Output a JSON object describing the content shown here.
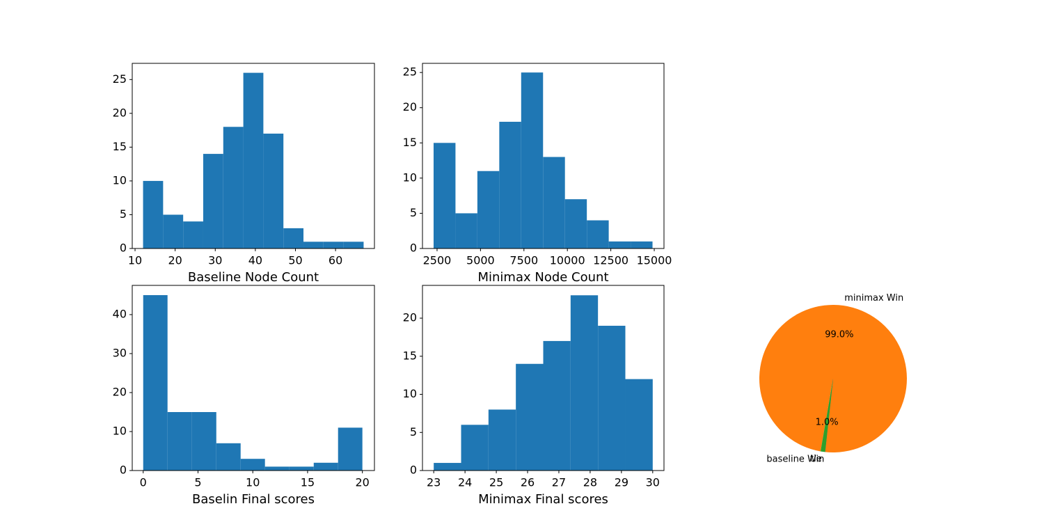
{
  "chart_data": [
    {
      "type": "histogram",
      "xlabel": "Baseline Node Count",
      "color": "#1f77b4",
      "bins": [
        12,
        17,
        22,
        27,
        32,
        37,
        42,
        47,
        52,
        57,
        62,
        67
      ],
      "values": [
        10,
        5,
        4,
        14,
        18,
        26,
        17,
        3,
        1,
        1,
        1
      ],
      "xlim": [
        9.3,
        69.7
      ],
      "ylim": [
        0,
        27.4
      ],
      "xticks": [
        10,
        20,
        30,
        40,
        50,
        60
      ],
      "yticks": [
        0,
        5,
        10,
        15,
        20,
        25
      ]
    },
    {
      "type": "histogram",
      "xlabel": "Minimax Node Count",
      "color": "#1f77b4",
      "bins": [
        2300,
        3560,
        4820,
        6080,
        7340,
        8600,
        9860,
        11120,
        12380,
        13640,
        14900
      ],
      "values": [
        15,
        5,
        11,
        18,
        25,
        13,
        7,
        4,
        1,
        1
      ],
      "xlim": [
        1660,
        15560
      ],
      "ylim": [
        0,
        26.3
      ],
      "xticks": [
        2500,
        5000,
        7500,
        10000,
        12500,
        15000
      ],
      "yticks": [
        0,
        5,
        10,
        15,
        20,
        25
      ]
    },
    {
      "type": "histogram",
      "xlabel": "Baselin Final scores",
      "color": "#1f77b4",
      "bins": [
        0,
        2.22,
        4.44,
        6.67,
        8.89,
        11.11,
        13.33,
        15.56,
        17.78,
        20
      ],
      "values": [
        45,
        15,
        15,
        7,
        3,
        1,
        1,
        2,
        11
      ],
      "xlim": [
        -1.0,
        21.1
      ],
      "ylim": [
        0,
        47.5
      ],
      "xticks": [
        0,
        5,
        10,
        15,
        20
      ],
      "yticks": [
        0,
        10,
        20,
        30,
        40
      ]
    },
    {
      "type": "histogram",
      "xlabel": "Minimax Final scores",
      "color": "#1f77b4",
      "bins": [
        23,
        23.875,
        24.75,
        25.625,
        26.5,
        27.375,
        28.25,
        29.125,
        30
      ],
      "values": [
        1,
        6,
        8,
        14,
        17,
        23,
        19,
        12
      ],
      "xlim": [
        22.64,
        30.36
      ],
      "ylim": [
        0,
        24.3
      ],
      "xticks": [
        23,
        24,
        25,
        26,
        27,
        28,
        29,
        30
      ],
      "yticks": [
        0,
        5,
        10,
        15,
        20
      ]
    },
    {
      "type": "pie",
      "categories": [
        "baseline Win",
        "minimax Win",
        "tie"
      ],
      "values": [
        0,
        99,
        1
      ],
      "value_labels": [
        "0.0%",
        "99.0%",
        "1.0%"
      ],
      "colors": [
        "#1f77b4",
        "#ff7f0e",
        "#2ca02c"
      ]
    }
  ]
}
